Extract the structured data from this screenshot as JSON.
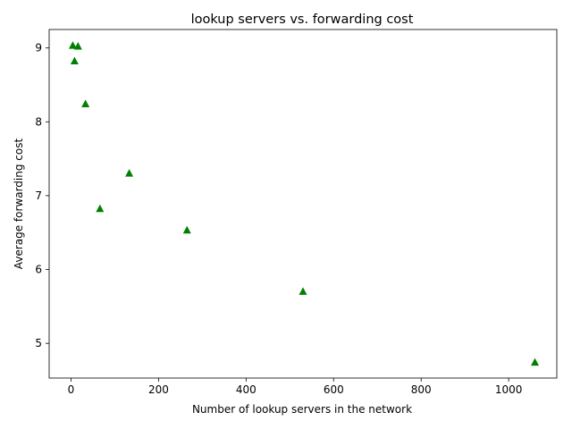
{
  "chart_data": {
    "type": "scatter",
    "title": "lookup servers vs. forwarding cost",
    "xlabel": "Number of lookup servers in the network",
    "ylabel": "Average forwarding cost",
    "xlim": [
      -50,
      1110
    ],
    "ylim": [
      4.53,
      9.25
    ],
    "xticks": [
      0,
      200,
      400,
      600,
      800,
      1000
    ],
    "yticks": [
      5,
      6,
      7,
      8,
      9
    ],
    "grid": false,
    "legend": "none",
    "marker": "triangle-up",
    "color": "#008000",
    "series": [
      {
        "x": [
          4,
          16,
          8,
          33,
          66,
          133,
          265,
          530,
          1060
        ],
        "y": [
          9.03,
          9.02,
          8.82,
          8.24,
          6.82,
          7.3,
          6.53,
          5.7,
          4.74
        ]
      }
    ]
  }
}
